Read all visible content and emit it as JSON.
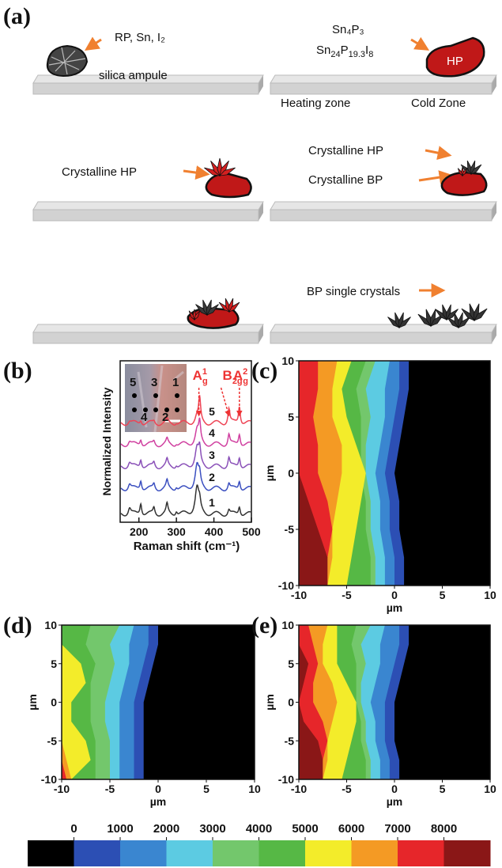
{
  "panel_a": {
    "label": "(a)",
    "reactants": "RP, Sn, I₂",
    "ampule": "silica ampule",
    "formula1": "Sn₄P₃",
    "formula2": [
      "Sn",
      "24",
      "P",
      "19.3",
      "I",
      "8"
    ],
    "hp": "HP",
    "heating": "Heating zone",
    "cold": "Cold Zone",
    "cryst_hp": "Crystalline HP",
    "cryst_hp2": "Crystalline HP",
    "cryst_bp": "Crystalline BP",
    "bp_single": "BP single crystals"
  },
  "panel_b": {
    "label": "(b)",
    "type": "line",
    "xlabel": "Raman shift (cm⁻¹)",
    "ylabel": "Normalized Intensity",
    "xlim": [
      150,
      500
    ],
    "xticks": [
      200,
      300,
      400,
      500
    ],
    "spectra": [
      "1",
      "2",
      "3",
      "4",
      "5"
    ],
    "spot_labels": [
      "5",
      "3",
      "1",
      "4",
      "2"
    ],
    "peaks": [
      {
        "base": "A",
        "sup": "1",
        "sub": "g",
        "x": 360
      },
      {
        "base": "B",
        "sup": "",
        "sub": "2g",
        "x": 440
      },
      {
        "base": "A",
        "sup": "2",
        "sub": "g",
        "x": 468
      }
    ]
  },
  "maps": [
    {
      "label": "(c)",
      "xlabel": "µm",
      "ylabel": "µm",
      "xlim": [
        -10,
        10
      ],
      "ylim": [
        -10,
        10
      ],
      "xticks": [
        -10,
        -5,
        0,
        5,
        10
      ],
      "yticks": [
        -10,
        -5,
        0,
        5,
        10
      ]
    },
    {
      "label": "(d)",
      "xlabel": "µm",
      "ylabel": "µm",
      "xlim": [
        -10,
        10
      ],
      "ylim": [
        -10,
        10
      ],
      "xticks": [
        -10,
        -5,
        0,
        5,
        10
      ],
      "yticks": [
        -10,
        -5,
        0,
        5,
        10
      ]
    },
    {
      "label": "(e)",
      "xlabel": "µm",
      "ylabel": "µm",
      "xlim": [
        -10,
        10
      ],
      "ylim": [
        -10,
        10
      ],
      "xticks": [
        -10,
        -5,
        0,
        5,
        10
      ],
      "yticks": [
        -10,
        -5,
        0,
        5,
        10
      ]
    }
  ],
  "colorbar": {
    "ticks": [
      0,
      1000,
      2000,
      3000,
      4000,
      5000,
      6000,
      7000,
      8000
    ],
    "colors": [
      "#000000",
      "#2c4fb4",
      "#3a86d0",
      "#5ccbe2",
      "#73c76c",
      "#56b845",
      "#f3ec2a",
      "#f49a24",
      "#e6262a",
      "#8a1717"
    ]
  }
}
